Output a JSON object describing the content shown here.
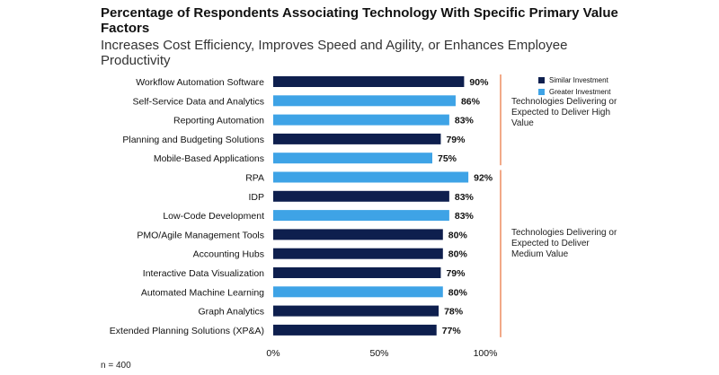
{
  "chart_data": {
    "type": "bar",
    "orientation": "horizontal",
    "title": "Percentage of Respondents Associating Technology With Specific Primary Value Factors",
    "subtitle": "Increases Cost Efficiency, Improves Speed and Agility, or Enhances Employee Productivity",
    "categories": [
      "Workflow Automation Software",
      "Self-Service Data and Analytics",
      "Reporting Automation",
      "Planning and Budgeting Solutions",
      "Mobile-Based Applications",
      "RPA",
      "IDP",
      "Low-Code Development",
      "PMO/Agile Management Tools",
      "Accounting Hubs",
      "Interactive Data Visualization",
      "Automated Machine Learning",
      "Graph Analytics",
      "Extended Planning Solutions (XP&A)"
    ],
    "values": [
      90,
      86,
      83,
      79,
      75,
      92,
      83,
      83,
      80,
      80,
      79,
      80,
      78,
      77
    ],
    "value_labels": [
      "90%",
      "86%",
      "83%",
      "79%",
      "75%",
      "92%",
      "83%",
      "83%",
      "80%",
      "80%",
      "79%",
      "80%",
      "78%",
      "77%"
    ],
    "bar_series": [
      "Similar Investment",
      "Greater Investment",
      "Greater Investment",
      "Similar Investment",
      "Greater Investment",
      "Greater Investment",
      "Similar Investment",
      "Greater Investment",
      "Similar Investment",
      "Similar Investment",
      "Similar Investment",
      "Greater Investment",
      "Similar Investment",
      "Similar Investment"
    ],
    "legend": [
      {
        "name": "Similar Investment",
        "color": "#0e1f4e"
      },
      {
        "name": "Greater Investment",
        "color": "#3ea3e6"
      }
    ],
    "groups": [
      {
        "label": "Technologies Delivering or Expected to Deliver High Value",
        "from": 0,
        "to": 4
      },
      {
        "label": "Technologies Delivering or Expected to Deliver Medium Value",
        "from": 5,
        "to": 13
      }
    ],
    "xticks": [
      "0%",
      "50%",
      "100%"
    ],
    "xlim": [
      0,
      100
    ],
    "legend_position": "top-right",
    "grid": false,
    "bracket_color": "#e8703a",
    "note": "n = 400"
  }
}
